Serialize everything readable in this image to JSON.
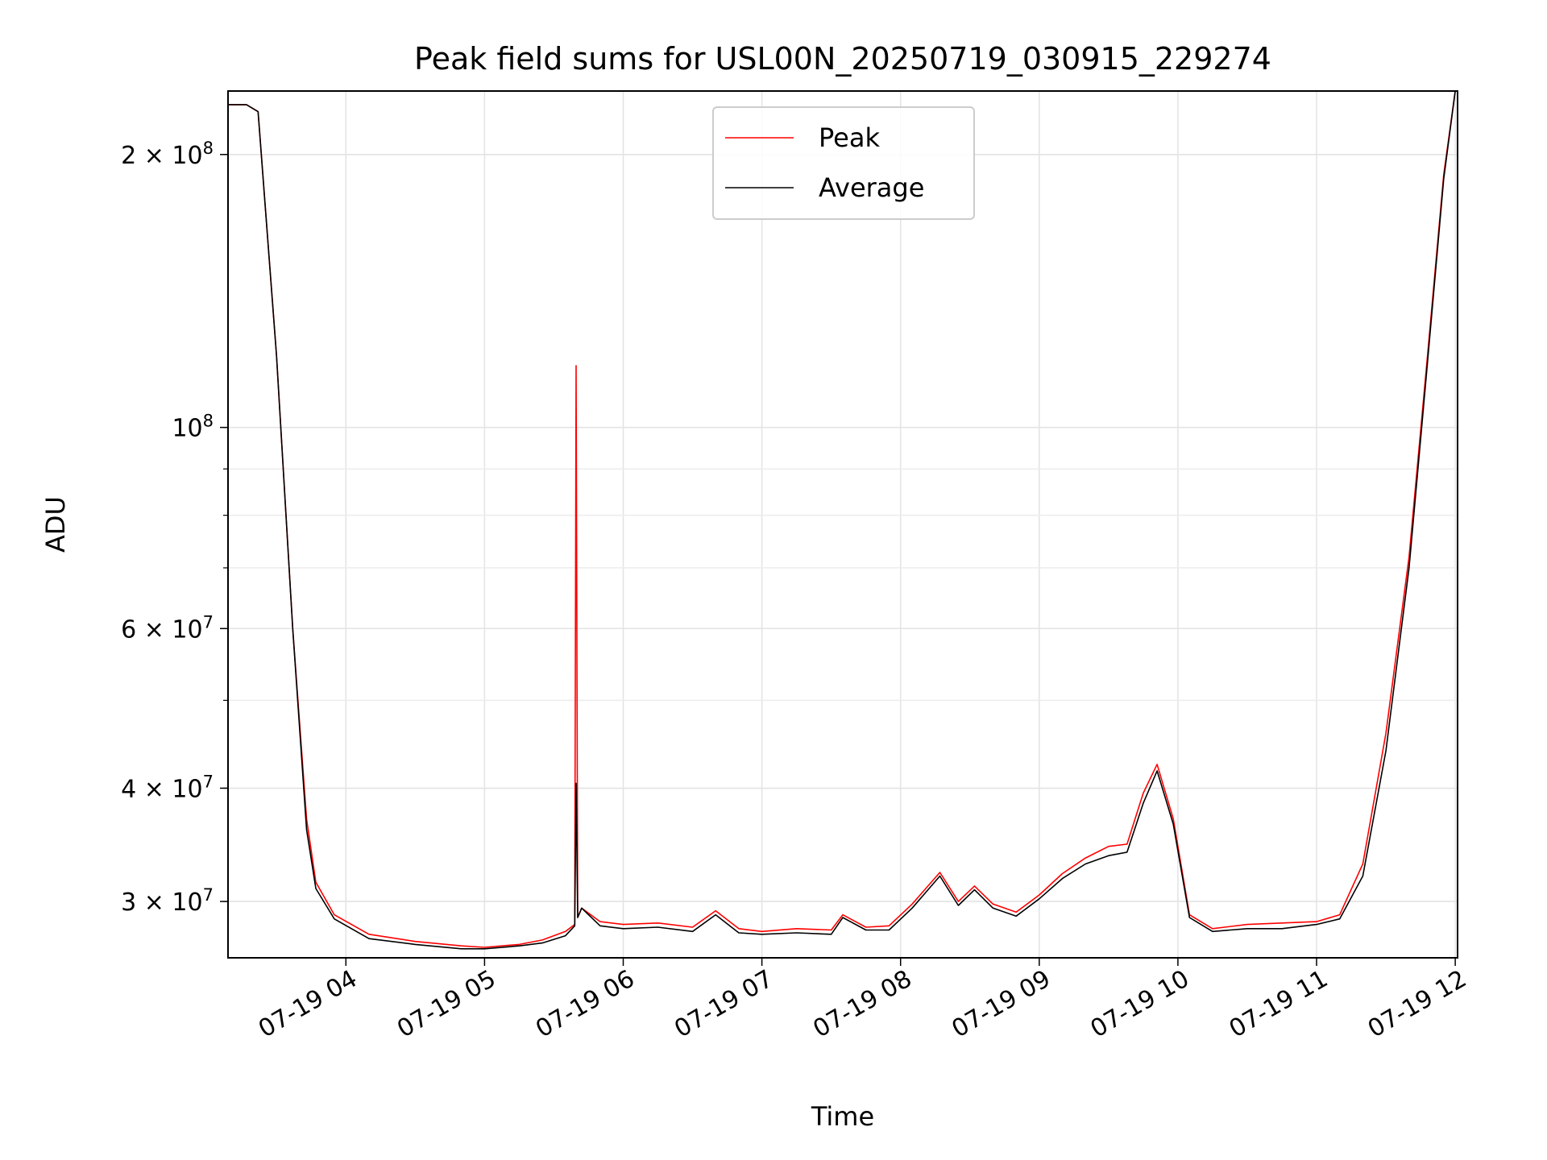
{
  "chart_data": {
    "type": "line",
    "title": "Peak field sums for USL00N_20250719_030915_229274",
    "xlabel": "Time",
    "ylabel": "ADU",
    "yscale": "log",
    "grid": true,
    "legend_position": "upper center",
    "xlim": [
      "2025-07-19 03:09",
      "2025-07-19 12:01"
    ],
    "ylim": [
      26000000,
      235000000
    ],
    "x_ticks": [
      "07-19 04",
      "07-19 05",
      "07-19 06",
      "07-19 07",
      "07-19 08",
      "07-19 09",
      "07-19 10",
      "07-19 11",
      "07-19 12"
    ],
    "y_ticks": [
      {
        "value": 30000000,
        "label": "3 × 10^7"
      },
      {
        "value": 40000000,
        "label": "4 × 10^7"
      },
      {
        "value": 60000000,
        "label": "6 × 10^7"
      },
      {
        "value": 100000000,
        "label": "10^8"
      },
      {
        "value": 200000000,
        "label": "2 × 10^8"
      }
    ],
    "series": [
      {
        "name": "Peak",
        "color": "#ff0000",
        "x": [
          "2025-07-19 03:09",
          "2025-07-19 03:17",
          "2025-07-19 03:22",
          "2025-07-19 03:30",
          "2025-07-19 03:37",
          "2025-07-19 03:43",
          "2025-07-19 03:47",
          "2025-07-19 03:55",
          "2025-07-19 04:10",
          "2025-07-19 04:30",
          "2025-07-19 04:50",
          "2025-07-19 05:00",
          "2025-07-19 05:15",
          "2025-07-19 05:25",
          "2025-07-19 05:35",
          "2025-07-19 05:39",
          "2025-07-19 05:39.6",
          "2025-07-19 05:40.3",
          "2025-07-19 05:42",
          "2025-07-19 05:50",
          "2025-07-19 06:00",
          "2025-07-19 06:15",
          "2025-07-19 06:30",
          "2025-07-19 06:40",
          "2025-07-19 06:50",
          "2025-07-19 07:00",
          "2025-07-19 07:15",
          "2025-07-19 07:30",
          "2025-07-19 07:35",
          "2025-07-19 07:45",
          "2025-07-19 07:55",
          "2025-07-19 08:05",
          "2025-07-19 08:17",
          "2025-07-19 08:25",
          "2025-07-19 08:32",
          "2025-07-19 08:40",
          "2025-07-19 08:50",
          "2025-07-19 09:00",
          "2025-07-19 09:10",
          "2025-07-19 09:20",
          "2025-07-19 09:30",
          "2025-07-19 09:38",
          "2025-07-19 09:45",
          "2025-07-19 09:51",
          "2025-07-19 09:58",
          "2025-07-19 10:05",
          "2025-07-19 10:15",
          "2025-07-19 10:30",
          "2025-07-19 10:45",
          "2025-07-19 11:00",
          "2025-07-19 11:10",
          "2025-07-19 11:20",
          "2025-07-19 11:30",
          "2025-07-19 11:40",
          "2025-07-19 11:48",
          "2025-07-19 11:55",
          "2025-07-19 12:00"
        ],
        "values": [
          227000000,
          227000000,
          223000000,
          120000000,
          60000000,
          37000000,
          31500000,
          29000000,
          27600000,
          27100000,
          26800000,
          26700000,
          26900000,
          27200000,
          27800000,
          28300000,
          117000000,
          28800000,
          29500000,
          28500000,
          28300000,
          28400000,
          28100000,
          29300000,
          28000000,
          27800000,
          28000000,
          27900000,
          29000000,
          28100000,
          28200000,
          29800000,
          32300000,
          30000000,
          31200000,
          29800000,
          29200000,
          30500000,
          32200000,
          33500000,
          34500000,
          34700000,
          39500000,
          42500000,
          37000000,
          29000000,
          28000000,
          28300000,
          28400000,
          28500000,
          29000000,
          33000000,
          46000000,
          72000000,
          120000000,
          190000000,
          235000000
        ]
      },
      {
        "name": "Average",
        "color": "#000000",
        "x": [
          "2025-07-19 03:09",
          "2025-07-19 03:17",
          "2025-07-19 03:22",
          "2025-07-19 03:30",
          "2025-07-19 03:37",
          "2025-07-19 03:43",
          "2025-07-19 03:47",
          "2025-07-19 03:55",
          "2025-07-19 04:10",
          "2025-07-19 04:30",
          "2025-07-19 04:50",
          "2025-07-19 05:00",
          "2025-07-19 05:15",
          "2025-07-19 05:25",
          "2025-07-19 05:35",
          "2025-07-19 05:39",
          "2025-07-19 05:39.6",
          "2025-07-19 05:40.3",
          "2025-07-19 05:42",
          "2025-07-19 05:50",
          "2025-07-19 06:00",
          "2025-07-19 06:15",
          "2025-07-19 06:30",
          "2025-07-19 06:40",
          "2025-07-19 06:50",
          "2025-07-19 07:00",
          "2025-07-19 07:15",
          "2025-07-19 07:30",
          "2025-07-19 07:35",
          "2025-07-19 07:45",
          "2025-07-19 07:55",
          "2025-07-19 08:05",
          "2025-07-19 08:17",
          "2025-07-19 08:25",
          "2025-07-19 08:32",
          "2025-07-19 08:40",
          "2025-07-19 08:50",
          "2025-07-19 09:00",
          "2025-07-19 09:10",
          "2025-07-19 09:20",
          "2025-07-19 09:30",
          "2025-07-19 09:38",
          "2025-07-19 09:45",
          "2025-07-19 09:51",
          "2025-07-19 09:58",
          "2025-07-19 10:05",
          "2025-07-19 10:15",
          "2025-07-19 10:30",
          "2025-07-19 10:45",
          "2025-07-19 11:00",
          "2025-07-19 11:10",
          "2025-07-19 11:20",
          "2025-07-19 11:30",
          "2025-07-19 11:40",
          "2025-07-19 11:48",
          "2025-07-19 11:55",
          "2025-07-19 12:00"
        ],
        "values": [
          227000000,
          227000000,
          223000000,
          120000000,
          60000000,
          36000000,
          31000000,
          28700000,
          27300000,
          26900000,
          26600000,
          26600000,
          26800000,
          27000000,
          27500000,
          28200000,
          40500000,
          28800000,
          29500000,
          28200000,
          28000000,
          28100000,
          27800000,
          29000000,
          27700000,
          27600000,
          27700000,
          27600000,
          28800000,
          27900000,
          27900000,
          29500000,
          32000000,
          29700000,
          30900000,
          29500000,
          28900000,
          30200000,
          31800000,
          33000000,
          33700000,
          34000000,
          38500000,
          41800000,
          36500000,
          28800000,
          27800000,
          28000000,
          28000000,
          28300000,
          28700000,
          32000000,
          44000000,
          70000000,
          118000000,
          188000000,
          235000000
        ]
      }
    ]
  }
}
